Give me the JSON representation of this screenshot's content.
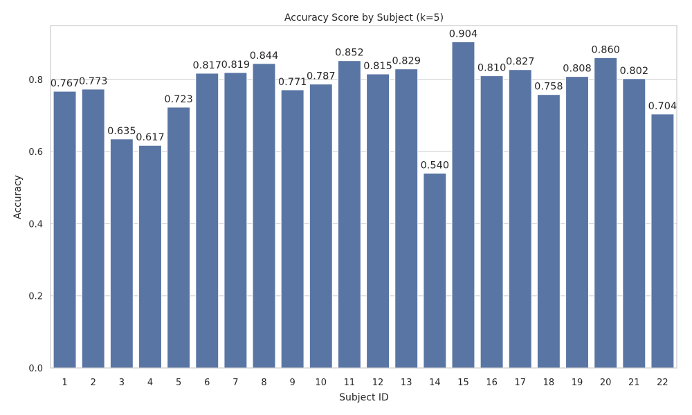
{
  "chart_data": {
    "type": "bar",
    "title": "Accuracy Score by Subject (k=5)",
    "xlabel": "Subject ID",
    "ylabel": "Accuracy",
    "categories": [
      "1",
      "2",
      "3",
      "4",
      "5",
      "6",
      "7",
      "8",
      "9",
      "10",
      "11",
      "12",
      "13",
      "14",
      "15",
      "16",
      "17",
      "18",
      "19",
      "20",
      "21",
      "22"
    ],
    "values": [
      0.767,
      0.773,
      0.635,
      0.617,
      0.723,
      0.817,
      0.819,
      0.844,
      0.771,
      0.787,
      0.852,
      0.815,
      0.829,
      0.54,
      0.904,
      0.81,
      0.827,
      0.758,
      0.808,
      0.86,
      0.802,
      0.704
    ],
    "value_labels": [
      "0.767",
      "0.773",
      "0.635",
      "0.617",
      "0.723",
      "0.817",
      "0.819",
      "0.844",
      "0.771",
      "0.787",
      "0.852",
      "0.815",
      "0.829",
      "0.540",
      "0.904",
      "0.810",
      "0.827",
      "0.758",
      "0.808",
      "0.860",
      "0.802",
      "0.704"
    ],
    "ylim": [
      0,
      0.9492
    ],
    "yticks": [
      0.0,
      0.2,
      0.4,
      0.6,
      0.8
    ],
    "ytick_labels": [
      "0.0",
      "0.2",
      "0.4",
      "0.6",
      "0.8"
    ],
    "grid": "horizontal",
    "bar_color": "#5975a4"
  }
}
